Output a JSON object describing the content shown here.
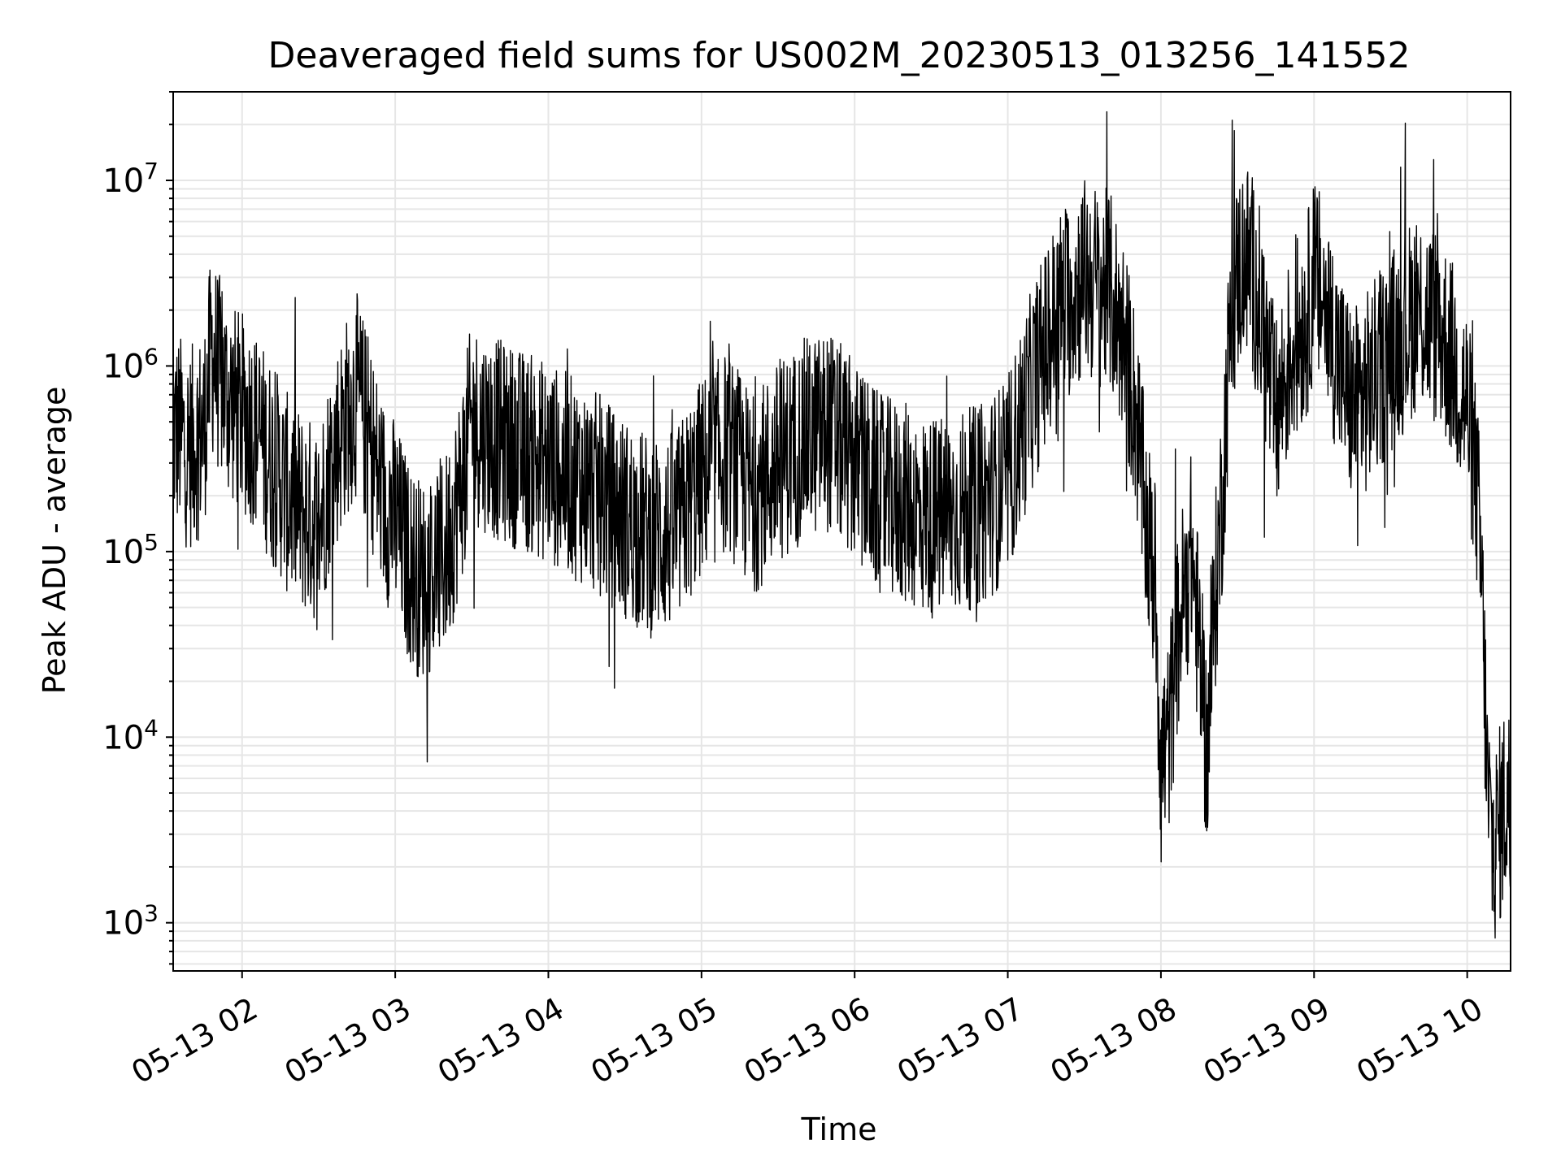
{
  "chart_data": {
    "type": "line",
    "title": "Deaveraged field sums for US002M_20230513_013256_141552",
    "xlabel": "Time",
    "ylabel": "Peak ADU - average",
    "yscale": "log",
    "ylim": [
      550,
      30000000
    ],
    "xlim": [
      "05-13 01:33",
      "05-13 10:17"
    ],
    "grid": true,
    "x_tick_labels": [
      "05-13 02",
      "05-13 03",
      "05-13 04",
      "05-13 05",
      "05-13 06",
      "05-13 07",
      "05-13 08",
      "05-13 09",
      "05-13 10"
    ],
    "y_tick_labels": [
      {
        "base": "10",
        "exp": "3"
      },
      {
        "base": "10",
        "exp": "4"
      },
      {
        "base": "10",
        "exp": "5"
      },
      {
        "base": "10",
        "exp": "6"
      },
      {
        "base": "10",
        "exp": "7"
      }
    ],
    "series": [
      {
        "color": "#000000",
        "x": [
          "01:33",
          "01:36",
          "01:39",
          "01:42",
          "01:45",
          "01:48",
          "01:51",
          "01:54",
          "01:57",
          "02:00",
          "02:03",
          "02:06",
          "02:09",
          "02:12",
          "02:15",
          "02:18",
          "02:21",
          "02:24",
          "02:27",
          "02:30",
          "02:35",
          "02:40",
          "02:45",
          "02:50",
          "02:55",
          "03:00",
          "03:05",
          "03:10",
          "03:15",
          "03:20",
          "03:25",
          "03:30",
          "03:40",
          "03:50",
          "04:00",
          "04:10",
          "04:20",
          "04:30",
          "04:40",
          "04:50",
          "05:00",
          "05:10",
          "05:20",
          "05:30",
          "05:40",
          "05:50",
          "06:00",
          "06:10",
          "06:20",
          "06:30",
          "06:40",
          "06:50",
          "07:00",
          "07:10",
          "07:20",
          "07:30",
          "07:40",
          "07:45",
          "07:50",
          "07:54",
          "07:58",
          "08:00",
          "08:03",
          "08:06",
          "08:09",
          "08:12",
          "08:15",
          "08:18",
          "08:21",
          "08:24",
          "08:27",
          "08:30",
          "08:33",
          "08:36",
          "08:39",
          "08:42",
          "08:45",
          "08:48",
          "08:51",
          "08:54",
          "08:57",
          "09:00",
          "09:05",
          "09:10",
          "09:15",
          "09:20",
          "09:25",
          "09:30",
          "09:35",
          "09:40",
          "09:45",
          "09:50",
          "09:55",
          "10:00",
          "10:04",
          "10:06",
          "10:08",
          "10:10",
          "10:12",
          "10:14",
          "10:16",
          "10:17"
        ],
        "y": [
          450000,
          420000,
          350000,
          400000,
          450000,
          1200000,
          900000,
          700000,
          600000,
          550000,
          500000,
          450000,
          350000,
          300000,
          250000,
          200000,
          180000,
          160000,
          150000,
          140000,
          300000,
          500000,
          700000,
          400000,
          200000,
          150000,
          90000,
          70000,
          80000,
          100000,
          200000,
          500000,
          400000,
          350000,
          300000,
          250000,
          200000,
          150000,
          120000,
          130000,
          250000,
          350000,
          200000,
          300000,
          400000,
          450000,
          300000,
          200000,
          180000,
          150000,
          160000,
          180000,
          250000,
          800000,
          2000000,
          3000000,
          2500000,
          1500000,
          600000,
          150000,
          60000,
          7000,
          10000,
          30000,
          60000,
          100000,
          30000,
          8000,
          50000,
          200000,
          1500000,
          3000000,
          4000000,
          3000000,
          2000000,
          1000000,
          500000,
          800000,
          1200000,
          1500000,
          1800000,
          3000000,
          2000000,
          1000000,
          600000,
          700000,
          900000,
          1200000,
          1500000,
          2000000,
          1800000,
          1500000,
          1000000,
          600000,
          200000,
          50000,
          5000,
          2500,
          3000,
          4000,
          5000,
          3500
        ]
      }
    ]
  }
}
